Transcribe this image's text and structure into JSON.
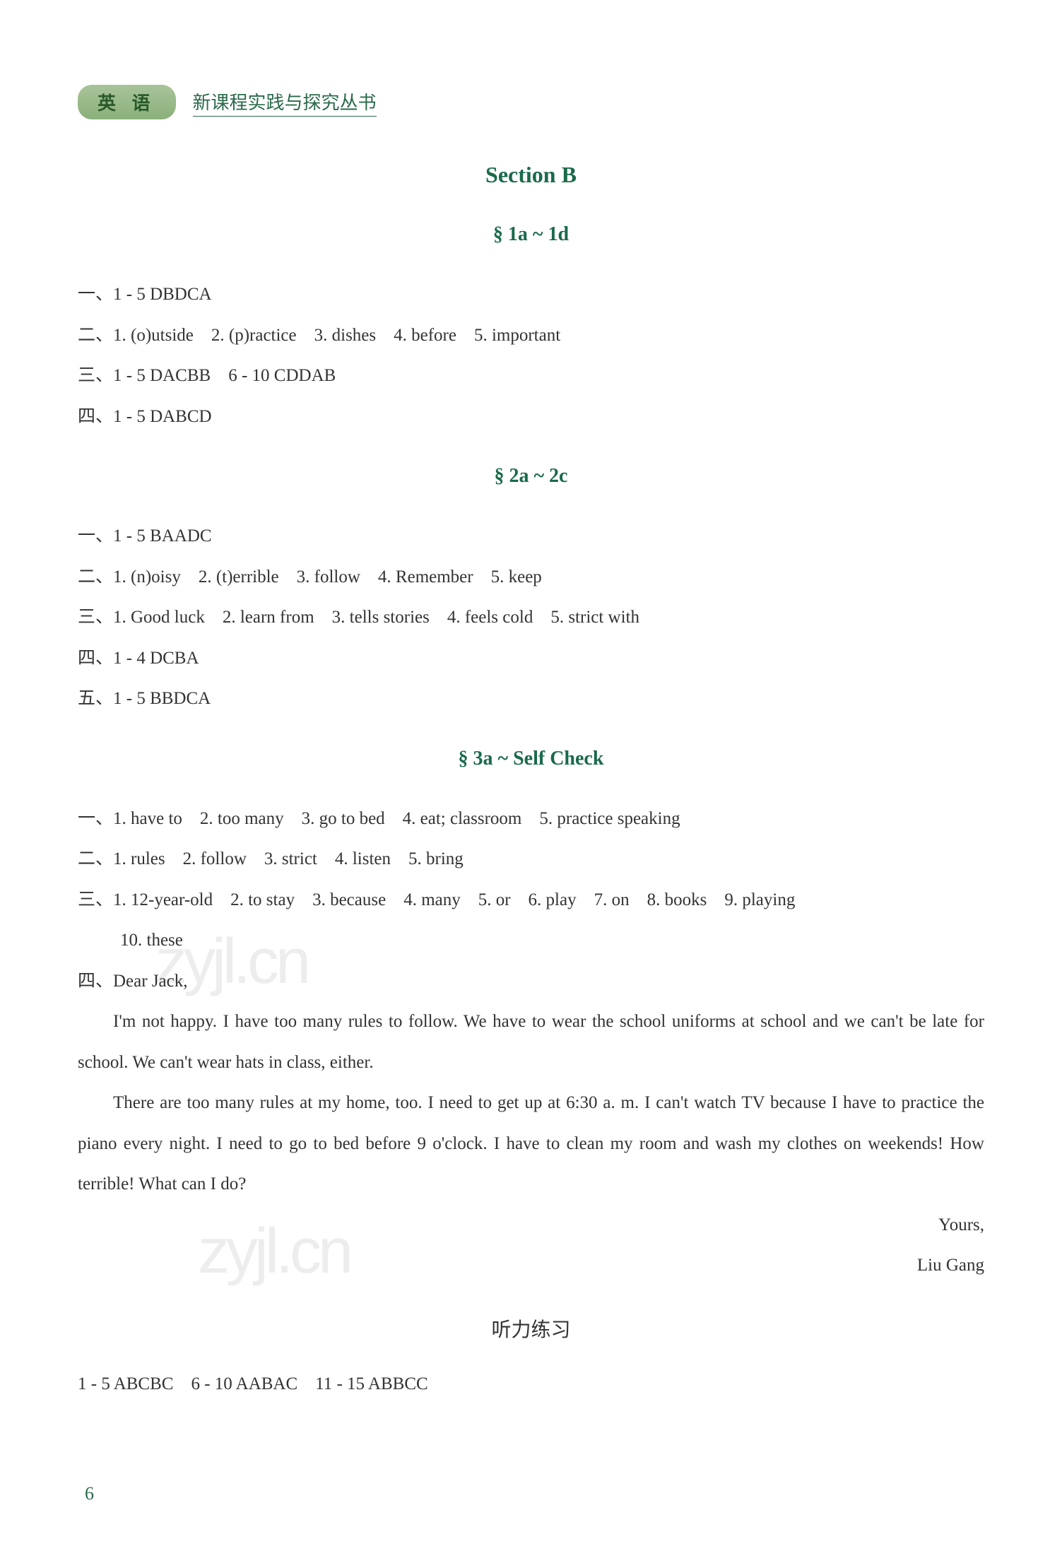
{
  "header": {
    "badge": "英 语",
    "series": "新课程实践与探究丛书"
  },
  "section": {
    "title": "Section B"
  },
  "subsections": [
    {
      "title": "§ 1a ~ 1d",
      "lines": [
        "一、1 - 5 DBDCA",
        "二、1. (o)utside　2. (p)ractice　3. dishes　4. before　5. important",
        "三、1 - 5 DACBB　6 - 10 CDDAB",
        "四、1 - 5 DABCD"
      ]
    },
    {
      "title": "§ 2a ~ 2c",
      "lines": [
        "一、1 - 5 BAADC",
        "二、1. (n)oisy　2. (t)errible　3. follow　4. Remember　5. keep",
        "三、1. Good luck　2. learn from　3. tells stories　4. feels cold　5. strict with",
        "四、1 - 4 DCBA",
        "五、1 - 5 BBDCA"
      ]
    },
    {
      "title": "§ 3a ~ Self Check",
      "lines": [
        "一、1. have to　2. too many　3. go to bed　4. eat; classroom　5. practice speaking",
        "二、1. rules　2. follow　3. strict　4. listen　5. bring",
        "三、1. 12-year-old　2. to stay　3. because　4. many　5. or　6. play　7. on　8. books　9. playing"
      ],
      "indented": "10. these",
      "letter": {
        "greeting": "四、Dear Jack,",
        "para1": "I'm not happy. I have too many rules to follow. We have to wear the school uniforms at school and we can't be late for school. We can't wear hats in class, either.",
        "para2": "There are too many rules at my home, too. I need to get up at 6:30 a. m. I can't watch TV because I have to practice the piano every night. I need to go to bed before 9 o'clock. I have to clean my room and wash my clothes on weekends! How terrible! What can I do?",
        "closing": "Yours,",
        "signature": "Liu Gang"
      }
    }
  ],
  "listening": {
    "title": "听力练习",
    "line": "1 - 5 ABCBC　6 - 10 AABAC　11 - 15 ABBCC"
  },
  "page": "6",
  "watermark": "zyjl.cn"
}
